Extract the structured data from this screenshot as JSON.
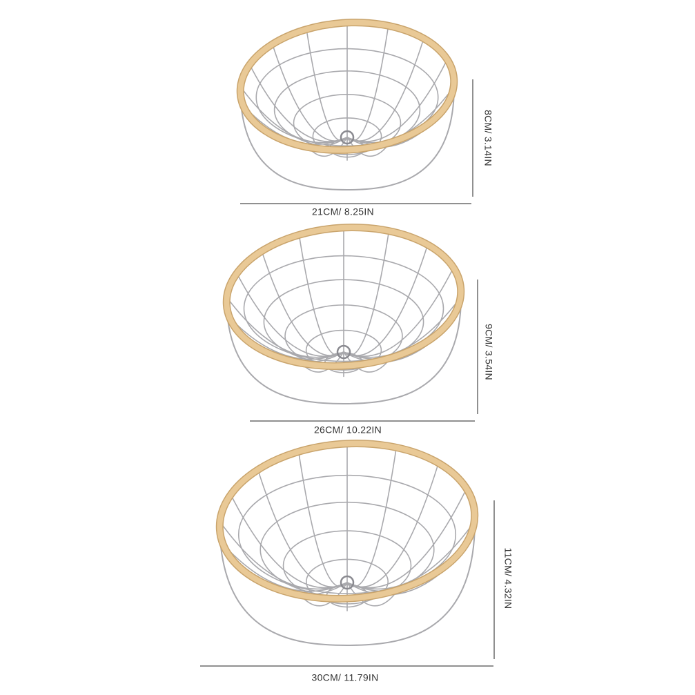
{
  "baskets": [
    {
      "width_label": "21CM/ 8.25IN",
      "height_label": "8CM/ 3.14IN"
    },
    {
      "width_label": "26CM/ 10.22IN",
      "height_label": "9CM/ 3.54IN"
    },
    {
      "width_label": "30CM/ 11.79IN",
      "height_label": "11CM/ 4.32IN"
    }
  ]
}
